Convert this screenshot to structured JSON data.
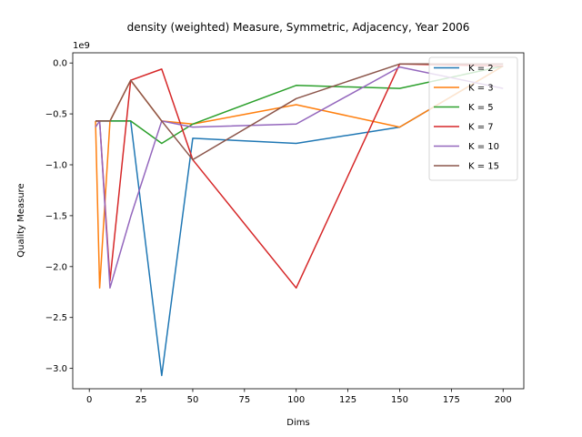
{
  "chart_data": {
    "type": "line",
    "title": "density (weighted) Measure, Symmetric, Adjacency, Year 2006",
    "xlabel": "Dims",
    "ylabel": "Quality Measure",
    "y_offset_label": "1e9",
    "xlim": [
      -8,
      210
    ],
    "ylim": [
      -3.2,
      0.1
    ],
    "x_ticks": [
      0,
      25,
      50,
      75,
      100,
      125,
      150,
      175,
      200
    ],
    "x_tick_labels": [
      "0",
      "25",
      "50",
      "75",
      "100",
      "125",
      "150",
      "175",
      "200"
    ],
    "y_ticks": [
      0.0,
      -0.5,
      -1.0,
      -1.5,
      -2.0,
      -2.5,
      -3.0
    ],
    "y_tick_labels": [
      "0.0",
      "−0.5",
      "−1.0",
      "−1.5",
      "−2.0",
      "−2.5",
      "−3.0"
    ],
    "grid": false,
    "legend_position": "top-right",
    "series": [
      {
        "name": "K = 2",
        "color": "#1f77b4",
        "x": [
          3,
          5,
          10,
          20,
          35,
          50,
          100,
          150,
          200
        ],
        "y": [
          -0.57,
          -0.57,
          -0.57,
          -0.57,
          -3.07,
          -0.74,
          -0.79,
          -0.63,
          -0.03
        ]
      },
      {
        "name": "K = 3",
        "color": "#ff7f0e",
        "x": [
          3,
          5,
          10,
          20,
          35,
          50,
          100,
          150,
          200
        ],
        "y": [
          -0.57,
          -2.21,
          -0.57,
          -0.17,
          -0.57,
          -0.6,
          -0.41,
          -0.63,
          -0.03
        ]
      },
      {
        "name": "K = 5",
        "color": "#2ca02c",
        "x": [
          3,
          5,
          10,
          20,
          35,
          50,
          100,
          150,
          200
        ],
        "y": [
          -0.57,
          -0.57,
          -0.57,
          -0.57,
          -0.79,
          -0.6,
          -0.22,
          -0.25,
          -0.03
        ]
      },
      {
        "name": "K = 7",
        "color": "#d62728",
        "x": [
          3,
          5,
          10,
          20,
          35,
          50,
          100,
          150,
          200
        ],
        "y": [
          -0.57,
          -0.57,
          -2.14,
          -0.17,
          -0.06,
          -0.95,
          -2.21,
          -0.01,
          -0.03
        ]
      },
      {
        "name": "K = 10",
        "color": "#9467bd",
        "x": [
          3,
          5,
          10,
          20,
          35,
          50,
          100,
          150,
          200
        ],
        "y": [
          -0.63,
          -0.57,
          -2.21,
          -1.51,
          -0.57,
          -0.63,
          -0.6,
          -0.04,
          -0.25
        ]
      },
      {
        "name": "K = 15",
        "color": "#8c564b",
        "x": [
          3,
          5,
          10,
          20,
          35,
          50,
          100,
          150,
          200
        ],
        "y": [
          -0.57,
          -0.57,
          -0.57,
          -0.17,
          -0.57,
          -0.95,
          -0.35,
          -0.01,
          -0.01
        ]
      }
    ]
  }
}
